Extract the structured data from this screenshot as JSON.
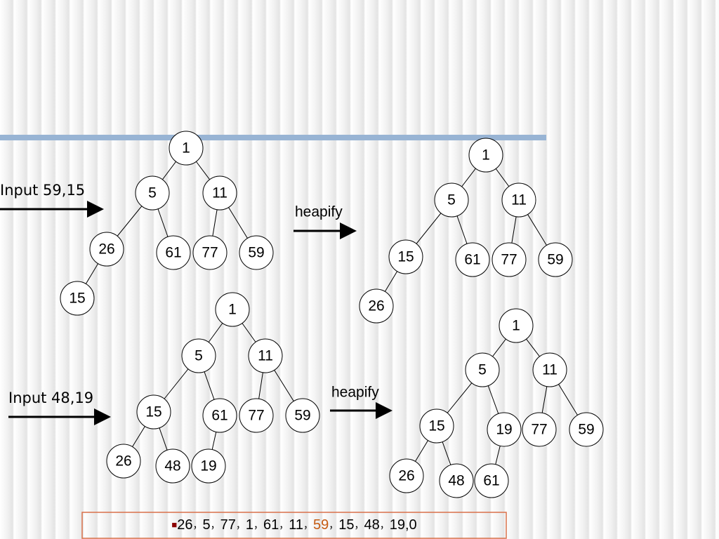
{
  "labels": [
    "Input 59,15",
    "heapify",
    "Input 48,19",
    "heapify"
  ],
  "trees": [
    {
      "nodes": [
        1,
        5,
        11,
        26,
        61,
        77,
        59,
        15
      ]
    },
    {
      "nodes": [
        1,
        5,
        11,
        15,
        61,
        77,
        59,
        26
      ]
    },
    {
      "nodes": [
        1,
        5,
        11,
        15,
        61,
        77,
        59,
        26,
        48,
        19
      ]
    },
    {
      "nodes": [
        1,
        5,
        11,
        15,
        19,
        77,
        59,
        26,
        48,
        61
      ]
    }
  ],
  "sequence": {
    "bullet": "■",
    "separator": "，",
    "items": [
      "26",
      "5",
      "77",
      "1",
      "61",
      "11",
      "59",
      "15",
      "48",
      "19,0"
    ],
    "highlight": {
      "index": 6,
      "color": "#c55a11"
    }
  }
}
